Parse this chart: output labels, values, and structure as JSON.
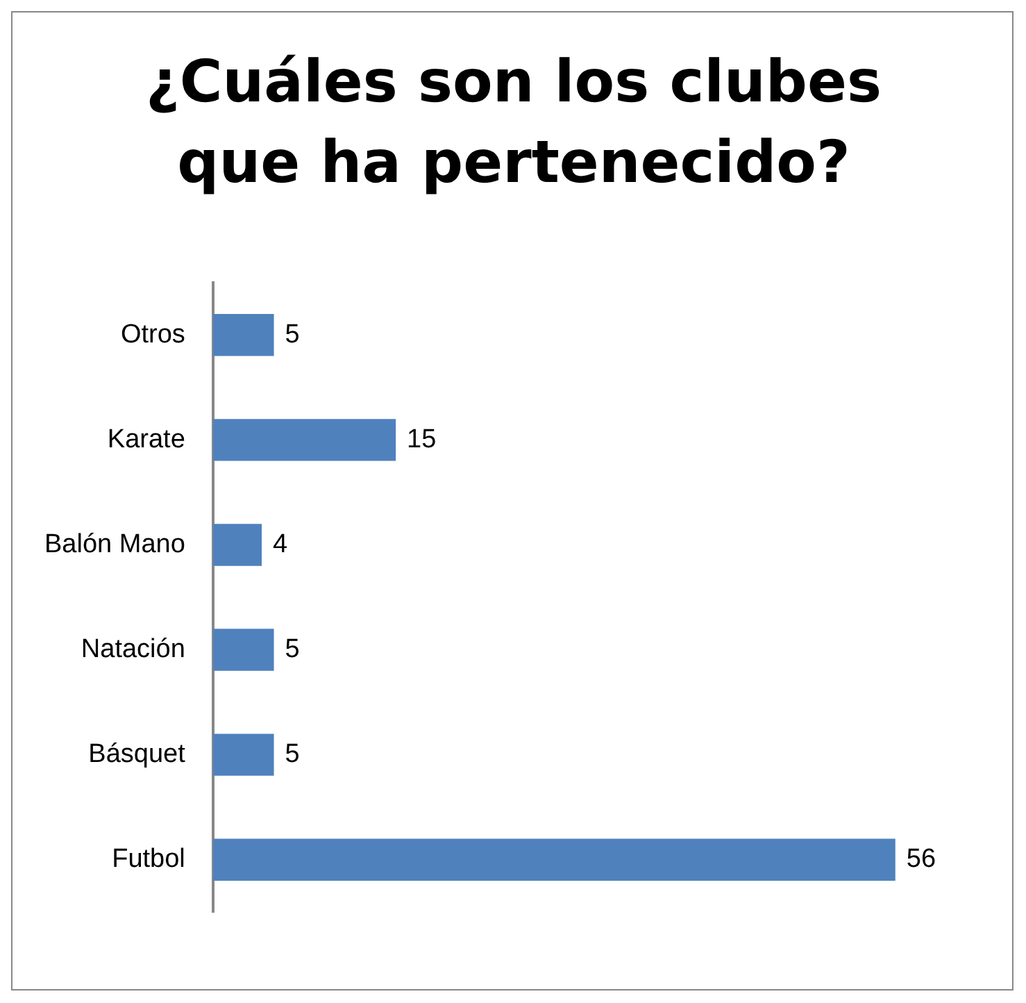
{
  "chart_data": {
    "type": "bar",
    "orientation": "horizontal",
    "title": "¿Cuáles son los clubes que ha pertenecido?",
    "categories": [
      "Otros",
      "Karate",
      "Balón Mano",
      "Natación",
      "Básquet",
      "Futbol"
    ],
    "values": [
      5,
      15,
      4,
      5,
      5,
      56
    ],
    "color": "#4f81bd",
    "data_labels": true,
    "grid": false,
    "legend": false
  }
}
